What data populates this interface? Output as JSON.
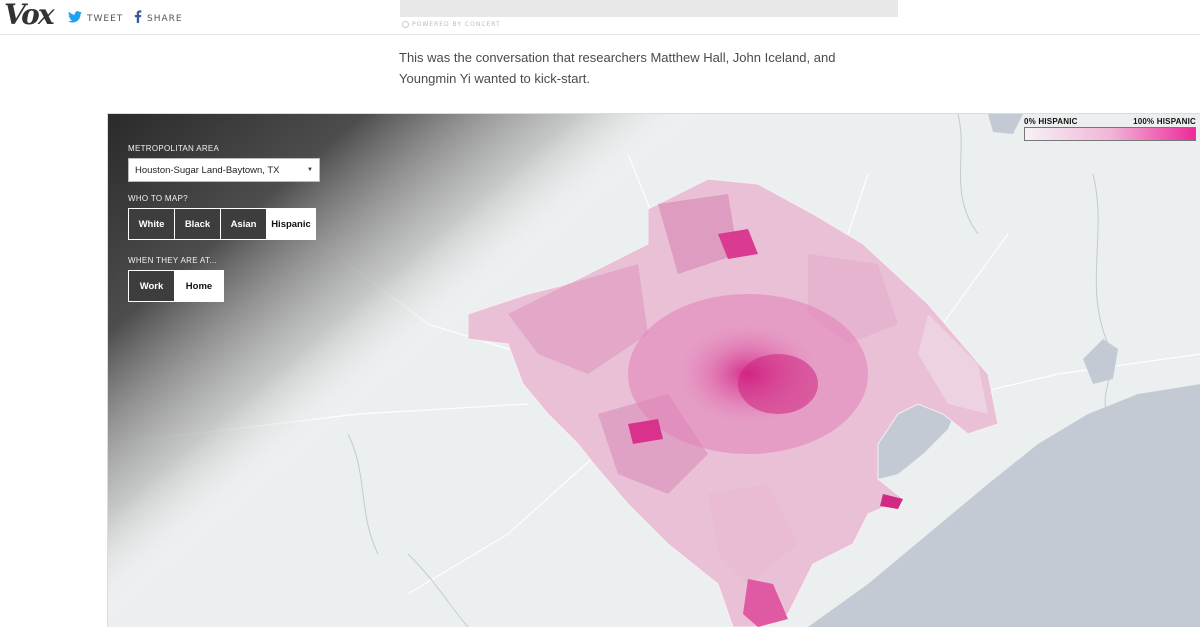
{
  "header": {
    "logo": "Vox",
    "tweet_label": "TWEET",
    "share_label": "SHARE"
  },
  "ad": {
    "powered_by": "POWERED BY CONCERT"
  },
  "article": {
    "paragraph": "This was the conversation that researchers Matthew Hall, John Iceland, and Youngmin Yi wanted to kick-start."
  },
  "map": {
    "controls": {
      "metro_label": "METROPOLITAN AREA",
      "metro_value": "Houston-Sugar Land-Baytown, TX",
      "who_label": "WHO TO MAP?",
      "who_options": [
        "White",
        "Black",
        "Asian",
        "Hispanic"
      ],
      "who_selected": "Hispanic",
      "when_label": "WHEN THEY ARE AT...",
      "when_options": [
        "Work",
        "Home"
      ],
      "when_selected": "Home"
    },
    "legend": {
      "min_label": "0% HISPANIC",
      "max_label": "100% HISPANIC",
      "min_color": "#f6f2f6",
      "max_color": "#ee2a9a"
    },
    "colors": {
      "land": "#eceff0",
      "water": "#c4cad4",
      "region_fill": "#e8b6d2",
      "dense_fill": "#e0409a"
    }
  }
}
